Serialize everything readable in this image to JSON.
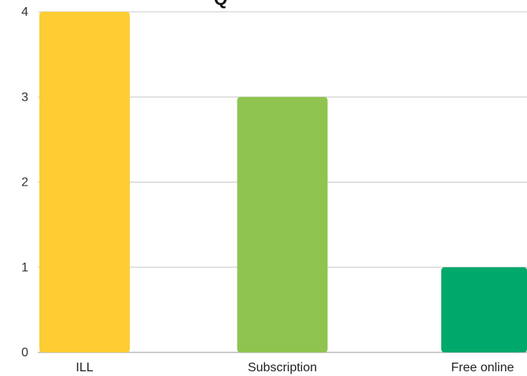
{
  "chart_data": {
    "type": "bar",
    "title_fragment": "Q",
    "categories": [
      "ILL",
      "Subscription",
      "Free online"
    ],
    "values": [
      4,
      3,
      1
    ],
    "colors": [
      "#FDCD33",
      "#8FC450",
      "#00A86B"
    ],
    "ylim": [
      0,
      4
    ],
    "yticks": [
      "0",
      "1",
      "2",
      "3",
      "4"
    ],
    "grid": true,
    "xlabel": "",
    "ylabel": ""
  }
}
